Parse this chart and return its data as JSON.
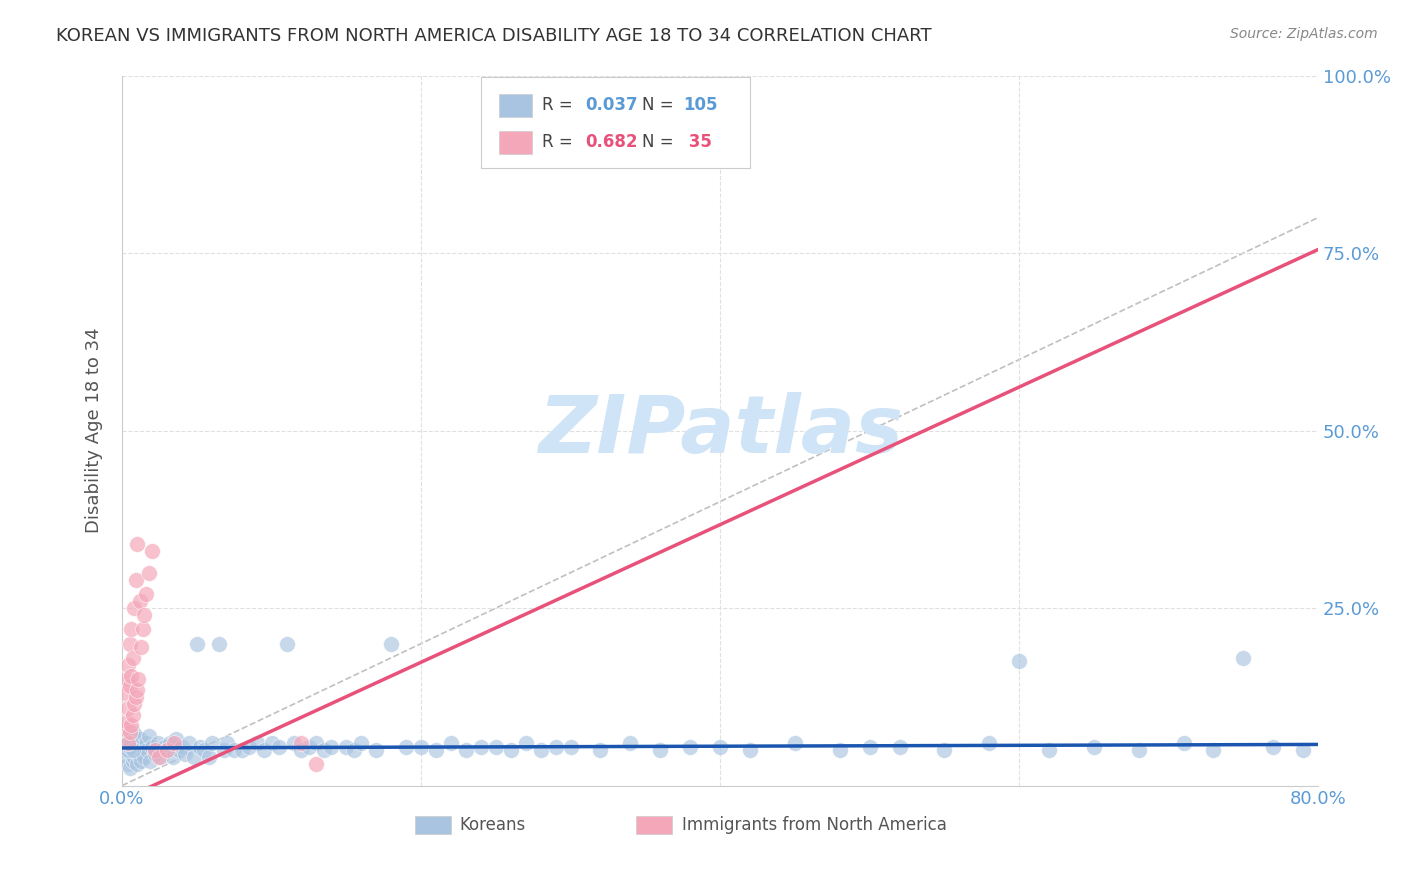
{
  "title": "KOREAN VS IMMIGRANTS FROM NORTH AMERICA DISABILITY AGE 18 TO 34 CORRELATION CHART",
  "source": "Source: ZipAtlas.com",
  "ylabel": "Disability Age 18 to 34",
  "xlabel": "",
  "xlim": [
    0.0,
    0.8
  ],
  "ylim": [
    0.0,
    1.0
  ],
  "yticks": [
    0.0,
    0.25,
    0.5,
    0.75,
    1.0
  ],
  "ytick_labels": [
    "",
    "25.0%",
    "50.0%",
    "75.0%",
    "100.0%"
  ],
  "xticks": [
    0.0,
    0.2,
    0.4,
    0.6,
    0.8
  ],
  "xtick_labels": [
    "0.0%",
    "",
    "",
    "",
    "80.0%"
  ],
  "korean_R": 0.037,
  "korean_N": 105,
  "immigrant_R": 0.682,
  "immigrant_N": 35,
  "korean_color": "#a8c4e0",
  "immigrant_color": "#f4a7b9",
  "korean_line_color": "#1a56b0",
  "immigrant_line_color": "#e8527a",
  "diagonal_color": "#c0c0c0",
  "watermark_color": "#d0e4f7",
  "background_color": "#ffffff",
  "grid_color": "#e0e0e0",
  "title_color": "#333333",
  "axis_color": "#5b9bd5",
  "legend_border_color": "#aaaaaa",
  "korean_scatter_x": [
    0.002,
    0.003,
    0.003,
    0.004,
    0.004,
    0.005,
    0.005,
    0.006,
    0.006,
    0.007,
    0.007,
    0.008,
    0.008,
    0.009,
    0.009,
    0.01,
    0.01,
    0.011,
    0.012,
    0.013,
    0.014,
    0.015,
    0.016,
    0.017,
    0.018,
    0.019,
    0.02,
    0.022,
    0.024,
    0.026,
    0.028,
    0.03,
    0.032,
    0.034,
    0.036,
    0.038,
    0.04,
    0.042,
    0.045,
    0.048,
    0.05,
    0.052,
    0.055,
    0.058,
    0.06,
    0.065,
    0.068,
    0.07,
    0.075,
    0.08,
    0.085,
    0.09,
    0.095,
    0.1,
    0.105,
    0.11,
    0.115,
    0.12,
    0.125,
    0.13,
    0.135,
    0.14,
    0.15,
    0.155,
    0.16,
    0.17,
    0.18,
    0.19,
    0.2,
    0.21,
    0.22,
    0.23,
    0.24,
    0.25,
    0.26,
    0.27,
    0.28,
    0.29,
    0.3,
    0.32,
    0.34,
    0.36,
    0.38,
    0.4,
    0.42,
    0.45,
    0.48,
    0.5,
    0.52,
    0.55,
    0.58,
    0.6,
    0.62,
    0.65,
    0.68,
    0.71,
    0.73,
    0.75,
    0.77,
    0.79,
    0.003,
    0.004,
    0.005,
    0.006,
    0.007
  ],
  "korean_scatter_y": [
    0.05,
    0.04,
    0.06,
    0.03,
    0.07,
    0.025,
    0.055,
    0.045,
    0.065,
    0.035,
    0.075,
    0.04,
    0.06,
    0.05,
    0.07,
    0.03,
    0.055,
    0.045,
    0.065,
    0.035,
    0.055,
    0.04,
    0.06,
    0.05,
    0.07,
    0.035,
    0.055,
    0.045,
    0.06,
    0.04,
    0.055,
    0.05,
    0.06,
    0.04,
    0.065,
    0.05,
    0.055,
    0.045,
    0.06,
    0.04,
    0.2,
    0.055,
    0.05,
    0.04,
    0.06,
    0.2,
    0.05,
    0.06,
    0.05,
    0.05,
    0.055,
    0.06,
    0.05,
    0.06,
    0.055,
    0.2,
    0.06,
    0.05,
    0.055,
    0.06,
    0.05,
    0.055,
    0.055,
    0.05,
    0.06,
    0.05,
    0.2,
    0.055,
    0.055,
    0.05,
    0.06,
    0.05,
    0.055,
    0.055,
    0.05,
    0.06,
    0.05,
    0.055,
    0.055,
    0.05,
    0.06,
    0.05,
    0.055,
    0.055,
    0.05,
    0.06,
    0.05,
    0.055,
    0.055,
    0.05,
    0.06,
    0.175,
    0.05,
    0.055,
    0.05,
    0.06,
    0.05,
    0.18,
    0.055,
    0.05,
    0.06,
    0.05,
    0.055,
    0.06,
    0.05
  ],
  "immigrant_scatter_x": [
    0.002,
    0.002,
    0.003,
    0.003,
    0.004,
    0.004,
    0.004,
    0.005,
    0.005,
    0.005,
    0.006,
    0.006,
    0.006,
    0.007,
    0.007,
    0.008,
    0.008,
    0.009,
    0.009,
    0.01,
    0.01,
    0.011,
    0.012,
    0.013,
    0.014,
    0.015,
    0.016,
    0.018,
    0.02,
    0.022,
    0.025,
    0.03,
    0.035,
    0.12,
    0.13
  ],
  "immigrant_scatter_y": [
    0.08,
    0.13,
    0.09,
    0.15,
    0.06,
    0.11,
    0.17,
    0.075,
    0.14,
    0.2,
    0.085,
    0.155,
    0.22,
    0.1,
    0.18,
    0.115,
    0.25,
    0.125,
    0.29,
    0.135,
    0.34,
    0.15,
    0.26,
    0.195,
    0.22,
    0.24,
    0.27,
    0.3,
    0.33,
    0.05,
    0.04,
    0.05,
    0.06,
    0.06,
    0.03
  ],
  "korean_trend_x": [
    0.0,
    0.8
  ],
  "korean_trend_y": [
    0.053,
    0.058
  ],
  "immigrant_trend_x": [
    0.0,
    0.8
  ],
  "immigrant_trend_y": [
    -0.02,
    0.755
  ]
}
